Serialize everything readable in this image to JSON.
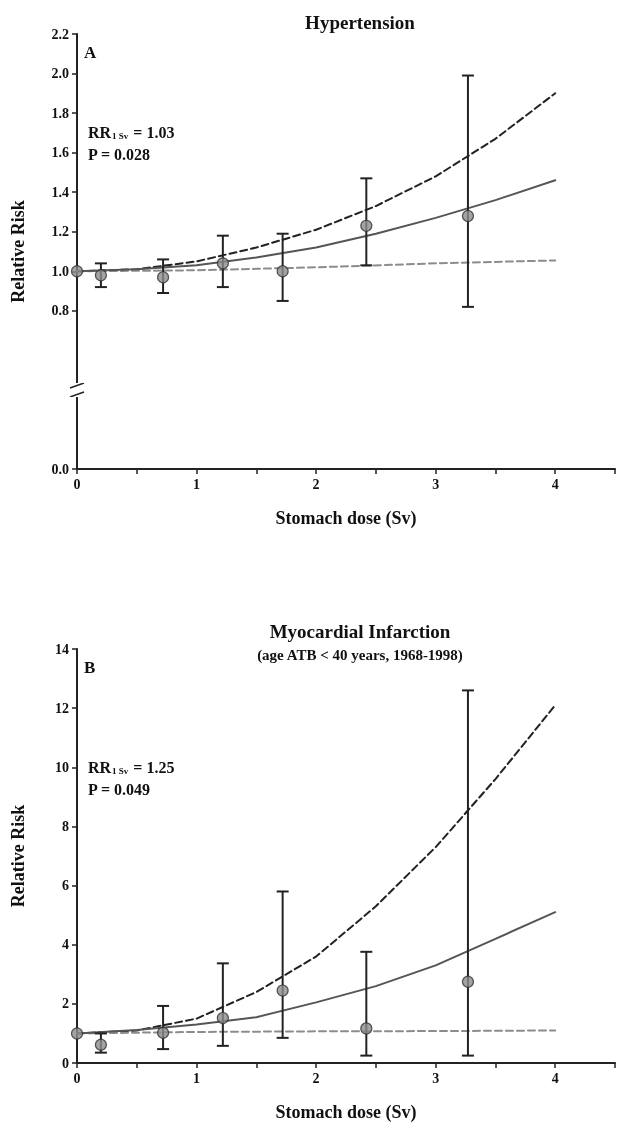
{
  "chart_data": [
    {
      "type": "scatter",
      "title": "Hypertension",
      "xlabel": "Stomach dose (Sv)",
      "ylabel": "Relative Risk",
      "annotations": [
        "A",
        "RR$_{1 Sv}$ = 1.03",
        "P = 0.028"
      ],
      "xlim": [
        0,
        4.5
      ],
      "xticks": [
        0,
        {
          "value": 0.5,
          "label": null
        },
        1,
        {
          "value": 1.5,
          "label": null
        },
        2,
        {
          "value": 2.5,
          "label": null
        },
        3,
        {
          "value": 3.5,
          "label": null
        },
        4,
        {
          "value": 4.5,
          "label": null
        }
      ],
      "ylim": [
        0,
        2.2
      ],
      "yticks": [
        {
          "value": 0,
          "label": "0.0"
        },
        0.8,
        {
          "value": 1,
          "label": "1.0"
        },
        1.2,
        1.4,
        1.6,
        1.8,
        {
          "value": 2,
          "label": "2.0"
        },
        2.2
      ],
      "grid": false,
      "series": [
        {
          "type": "line",
          "color": "#222222",
          "line_style": "dashed",
          "marker": "none",
          "x": [
            0,
            0.5,
            1,
            1.5,
            2,
            2.5,
            3,
            3.5,
            4
          ],
          "values": [
            1.0,
            1.01,
            1.05,
            1.12,
            1.21,
            1.33,
            1.48,
            1.67,
            1.9
          ]
        },
        {
          "type": "line",
          "color": "#8c8c8c",
          "line_style": "dashed",
          "marker": "none",
          "x": [
            0,
            1,
            2,
            3,
            4
          ],
          "values": [
            1.0,
            1.005,
            1.02,
            1.04,
            1.055
          ]
        },
        {
          "type": "line",
          "color": "#555555",
          "line_style": "solid",
          "marker": "none",
          "x": [
            0,
            0.5,
            1,
            1.5,
            2,
            2.5,
            3,
            3.5,
            4
          ],
          "values": [
            1.0,
            1.01,
            1.03,
            1.07,
            1.12,
            1.19,
            1.27,
            1.36,
            1.46
          ]
        },
        {
          "type": "scatter",
          "color": "#8c8c8c",
          "marker": "circle",
          "x": [
            0,
            0.2,
            0.72,
            1.22,
            1.72,
            2.42,
            3.27
          ],
          "values": [
            1.0,
            0.98,
            0.97,
            1.04,
            1.0,
            1.23,
            1.28
          ],
          "errors": [
            null,
            [
              0.92,
              1.04
            ],
            [
              0.89,
              1.06
            ],
            [
              0.92,
              1.18
            ],
            [
              0.85,
              1.19
            ],
            [
              1.03,
              1.47
            ],
            [
              0.82,
              1.99
            ]
          ]
        }
      ]
    },
    {
      "type": "scatter",
      "title": "Myocardial Infarction",
      "subtitle": "(age ATB < 40 years, 1968-1998)",
      "xlabel": "Stomach dose (Sv)",
      "ylabel": "Relative Risk",
      "annotations": [
        "B",
        "RR$_{1 Sv}$ = 1.25",
        "P = 0.049"
      ],
      "xlim": [
        0,
        4.5
      ],
      "xticks": [
        0,
        {
          "value": 0.5,
          "label": null
        },
        1,
        {
          "value": 1.5,
          "label": null
        },
        2,
        {
          "value": 2.5,
          "label": null
        },
        3,
        {
          "value": 3.5,
          "label": null
        },
        4,
        {
          "value": 4.5,
          "label": null
        }
      ],
      "ylim": [
        0,
        14
      ],
      "yticks": [
        0,
        2,
        4,
        6,
        8,
        10,
        12,
        14
      ],
      "grid": false,
      "series": [
        {
          "type": "line",
          "color": "#222222",
          "line_style": "dashed",
          "marker": "none",
          "x": [
            0,
            0.5,
            1,
            1.5,
            2,
            2.5,
            3,
            3.5,
            4
          ],
          "values": [
            1.0,
            1.1,
            1.5,
            2.4,
            3.6,
            5.3,
            7.3,
            9.6,
            12.1
          ]
        },
        {
          "type": "line",
          "color": "#8c8c8c",
          "line_style": "dashed",
          "marker": "none",
          "x": [
            0,
            1,
            2,
            3,
            4
          ],
          "values": [
            1.0,
            1.05,
            1.07,
            1.08,
            1.1
          ]
        },
        {
          "type": "line",
          "color": "#555555",
          "line_style": "solid",
          "marker": "none",
          "x": [
            0,
            0.5,
            1,
            1.5,
            2,
            2.5,
            3,
            3.5,
            4
          ],
          "values": [
            1.0,
            1.12,
            1.3,
            1.55,
            2.05,
            2.6,
            3.3,
            4.2,
            5.1
          ]
        },
        {
          "type": "scatter",
          "color": "#8c8c8c",
          "marker": "circle",
          "x": [
            0,
            0.2,
            0.72,
            1.22,
            1.72,
            2.42,
            3.27
          ],
          "values": [
            1.0,
            0.62,
            1.02,
            1.52,
            2.45,
            1.17,
            2.75
          ],
          "errors": [
            null,
            [
              0.35,
              1.0
            ],
            [
              0.47,
              1.93
            ],
            [
              0.58,
              3.37
            ],
            [
              0.85,
              5.8
            ],
            [
              0.25,
              3.76
            ],
            [
              0.25,
              12.6
            ]
          ]
        }
      ]
    }
  ]
}
